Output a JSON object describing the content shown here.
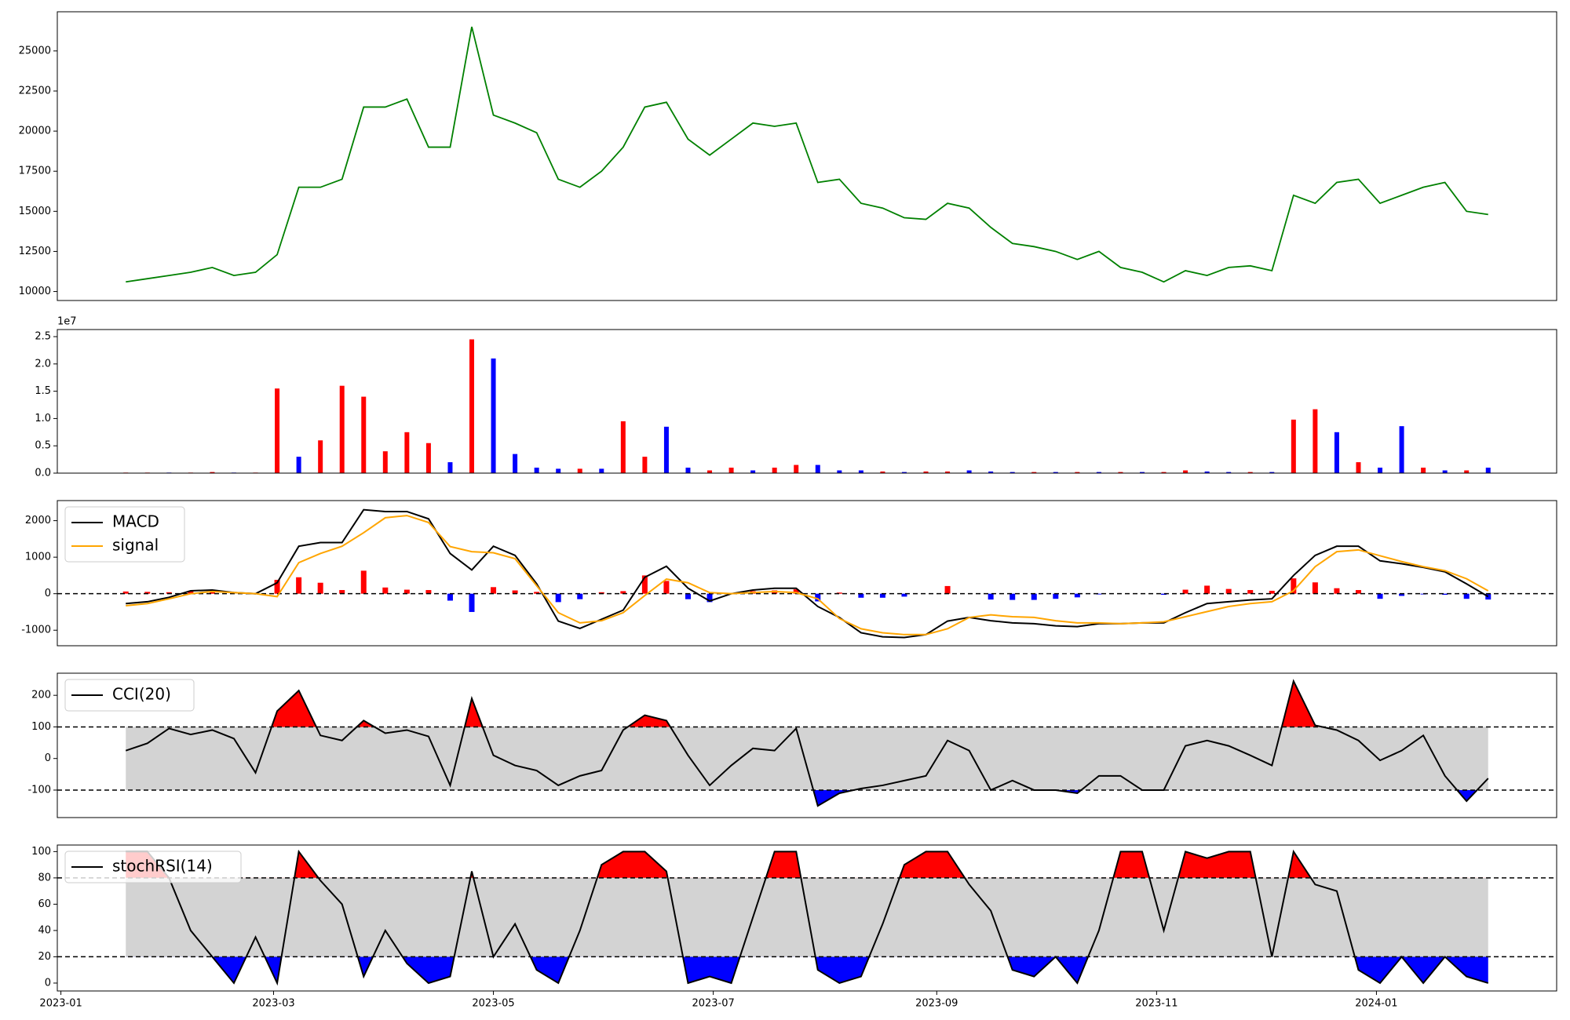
{
  "chart_data": [
    {
      "type": "line",
      "x": [
        18,
        24,
        30,
        36,
        42,
        48,
        54,
        60,
        66,
        72,
        78,
        84,
        90,
        96,
        102,
        108,
        114,
        120,
        126,
        132,
        138,
        144,
        150,
        156,
        162,
        168,
        174,
        180,
        186,
        192,
        198,
        204,
        210,
        216,
        222,
        228,
        234,
        240,
        246,
        252,
        258,
        264,
        270,
        276,
        282,
        288,
        294,
        300,
        306,
        312,
        318,
        324,
        330,
        336,
        342,
        348,
        354,
        360,
        366,
        372,
        378,
        384,
        390,
        396
      ],
      "values": [
        10600,
        10800,
        11000,
        11200,
        11500,
        11000,
        11200,
        12300,
        16500,
        16500,
        17000,
        21500,
        21500,
        22000,
        19000,
        19000,
        26500,
        21000,
        20500,
        19900,
        17000,
        16500,
        17500,
        19000,
        21500,
        21800,
        19500,
        18500,
        19500,
        20500,
        20300,
        20500,
        16800,
        17000,
        15500,
        15200,
        14600,
        14500,
        15500,
        15200,
        14000,
        13000,
        12800,
        12500,
        12000,
        12500,
        11500,
        11200,
        10600,
        11300,
        11000,
        11500,
        11600,
        11300,
        16000,
        15500,
        16800,
        17000,
        15500,
        16000,
        16500,
        16800,
        15000,
        14800
      ],
      "color": "green",
      "xlim": [
        -1,
        415
      ],
      "ylim": [
        9440,
        27440
      ],
      "yticks": [
        10000,
        12500,
        15000,
        17500,
        20000,
        22500,
        25000
      ]
    },
    {
      "type": "bar",
      "x": [
        18,
        24,
        30,
        36,
        42,
        48,
        54,
        60,
        66,
        72,
        78,
        84,
        90,
        96,
        102,
        108,
        114,
        120,
        126,
        132,
        138,
        144,
        150,
        156,
        162,
        168,
        174,
        180,
        186,
        192,
        198,
        204,
        210,
        216,
        222,
        228,
        234,
        240,
        246,
        252,
        258,
        264,
        270,
        276,
        282,
        288,
        294,
        300,
        306,
        312,
        318,
        324,
        330,
        336,
        342,
        348,
        354,
        360,
        366,
        372,
        378,
        384,
        390,
        396
      ],
      "values": [
        100000,
        100000,
        100000,
        100000,
        200000,
        100000,
        100000,
        15500000,
        3000000,
        6000000,
        16000000,
        14000000,
        4000000,
        7500000,
        5500000,
        2000000,
        24500000,
        21000000,
        3500000,
        1000000,
        800000,
        800000,
        800000,
        9500000,
        3000000,
        8500000,
        1000000,
        500000,
        1000000,
        500000,
        1000000,
        1500000,
        1500000,
        500000,
        500000,
        300000,
        200000,
        300000,
        300000,
        500000,
        300000,
        200000,
        200000,
        200000,
        200000,
        200000,
        200000,
        200000,
        200000,
        500000,
        300000,
        200000,
        200000,
        200000,
        9800000,
        11700000,
        7500000,
        2000000,
        1000000,
        8600000,
        1000000,
        500000,
        500000,
        1000000
      ],
      "colors": [
        "red",
        "red",
        "blue",
        "red",
        "red",
        "blue",
        "red",
        "red",
        "blue",
        "red",
        "red",
        "red",
        "red",
        "red",
        "red",
        "blue",
        "red",
        "blue",
        "blue",
        "blue",
        "blue",
        "red",
        "blue",
        "red",
        "red",
        "blue",
        "blue",
        "red",
        "red",
        "blue",
        "red",
        "red",
        "blue",
        "blue",
        "blue",
        "red",
        "blue",
        "red",
        "red",
        "blue",
        "blue",
        "blue",
        "red",
        "blue",
        "red",
        "blue",
        "red",
        "blue",
        "red",
        "red",
        "blue",
        "blue",
        "red",
        "blue",
        "red",
        "red",
        "blue",
        "red",
        "blue",
        "blue",
        "red",
        "blue",
        "red",
        "blue"
      ],
      "xlim": [
        -1,
        415
      ],
      "ylim": [
        0,
        26300000
      ],
      "offset_label": "1e7",
      "yticks": [
        {
          "value": 0,
          "label": "0.0"
        },
        {
          "value": 5000000,
          "label": "0.5"
        },
        {
          "value": 10000000,
          "label": "1.0"
        },
        {
          "value": 15000000,
          "label": "1.5"
        },
        {
          "value": 20000000,
          "label": "2.0"
        },
        {
          "value": 25000000,
          "label": "2.5"
        }
      ]
    },
    {
      "type": "macd",
      "x": [
        18,
        24,
        30,
        36,
        42,
        48,
        54,
        60,
        66,
        72,
        78,
        84,
        90,
        96,
        102,
        108,
        114,
        120,
        126,
        132,
        138,
        144,
        150,
        156,
        162,
        168,
        174,
        180,
        186,
        192,
        198,
        204,
        210,
        216,
        222,
        228,
        234,
        240,
        246,
        252,
        258,
        264,
        270,
        276,
        282,
        288,
        294,
        300,
        306,
        312,
        318,
        324,
        330,
        336,
        342,
        348,
        354,
        360,
        366,
        372,
        378,
        384,
        390,
        396
      ],
      "series": [
        {
          "name": "MACD",
          "color": "black",
          "values": [
            -270,
            -220,
            -100,
            80,
            100,
            30,
            0,
            300,
            1300,
            1400,
            1400,
            2300,
            2250,
            2250,
            2050,
            1100,
            650,
            1300,
            1050,
            270,
            -750,
            -950,
            -700,
            -450,
            450,
            750,
            150,
            -200,
            0,
            100,
            150,
            150,
            -350,
            -650,
            -1070,
            -1180,
            -1200,
            -1120,
            -750,
            -650,
            -740,
            -800,
            -820,
            -880,
            -900,
            -820,
            -820,
            -800,
            -800,
            -520,
            -270,
            -220,
            -170,
            -140,
            500,
            1050,
            1300,
            1300,
            900,
            820,
            720,
            600,
            270,
            -80
          ]
        },
        {
          "name": "signal",
          "color": "orange",
          "values": [
            -330,
            -270,
            -140,
            0,
            60,
            30,
            0,
            -80,
            850,
            1100,
            1300,
            1670,
            2080,
            2140,
            1950,
            1290,
            1150,
            1120,
            960,
            220,
            -520,
            -800,
            -740,
            -520,
            -50,
            400,
            300,
            30,
            0,
            30,
            60,
            30,
            -140,
            -680,
            -960,
            -1070,
            -1120,
            -1120,
            -960,
            -650,
            -580,
            -630,
            -650,
            -740,
            -800,
            -800,
            -820,
            -800,
            -770,
            -630,
            -490,
            -350,
            -270,
            -220,
            80,
            740,
            1150,
            1200,
            1040,
            880,
            740,
            630,
            410,
            80
          ]
        }
      ],
      "histogram": {
        "up_color": "red",
        "down_color": "blue",
        "values": [
          60,
          50,
          40,
          80,
          40,
          0,
          0,
          380,
          450,
          300,
          100,
          630,
          170,
          110,
          100,
          -190,
          -500,
          180,
          90,
          50,
          -230,
          -150,
          40,
          70,
          500,
          350,
          -150,
          -230,
          0,
          70,
          90,
          120,
          -210,
          30,
          -110,
          -110,
          -80,
          0,
          210,
          0,
          -160,
          -170,
          -170,
          -140,
          -100,
          -20,
          0,
          0,
          -30,
          110,
          220,
          130,
          100,
          80,
          420,
          310,
          150,
          100,
          -140,
          -60,
          -20,
          -30,
          -140,
          -160
        ]
      },
      "hlines": [
        0
      ],
      "legend": "upper left",
      "xlim": [
        -1,
        415
      ],
      "ylim": [
        -1425,
        2550
      ],
      "yticks": [
        -1000,
        0,
        1000,
        2000
      ]
    },
    {
      "type": "oscillator",
      "x": [
        18,
        24,
        30,
        36,
        42,
        48,
        54,
        60,
        66,
        72,
        78,
        84,
        90,
        96,
        102,
        108,
        114,
        120,
        126,
        132,
        138,
        144,
        150,
        156,
        162,
        168,
        174,
        180,
        186,
        192,
        198,
        204,
        210,
        216,
        222,
        228,
        234,
        240,
        246,
        252,
        258,
        264,
        270,
        276,
        282,
        288,
        294,
        300,
        306,
        312,
        318,
        324,
        330,
        336,
        342,
        348,
        354,
        360,
        366,
        372,
        378,
        384,
        390,
        396
      ],
      "series": [
        {
          "name": "CCI(20)",
          "color": "black",
          "values": [
            25,
            48,
            95,
            76,
            90,
            63,
            -45,
            150,
            215,
            73,
            57,
            120,
            80,
            90,
            70,
            -85,
            190,
            10,
            -22,
            -38,
            -85,
            -55,
            -38,
            90,
            137,
            120,
            10,
            -85,
            -22,
            32,
            25,
            95,
            -150,
            -110,
            -95,
            -85,
            -70,
            -55,
            57,
            25,
            -100,
            -70,
            -100,
            -100,
            -110,
            -55,
            -55,
            -100,
            -100,
            40,
            57,
            40,
            10,
            -22,
            245,
            105,
            90,
            57,
            -6,
            25,
            73,
            -55,
            -135,
            -63
          ]
        }
      ],
      "thresholds": [
        -100,
        100
      ],
      "band_color": "lightgray",
      "upper_color": "red",
      "lower_color": "blue",
      "legend": "upper left",
      "xlim": [
        -1,
        415
      ],
      "ylim": [
        -187,
        270
      ],
      "yticks": [
        -100,
        0,
        100,
        200
      ]
    },
    {
      "type": "oscillator",
      "x": [
        18,
        24,
        30,
        36,
        42,
        48,
        54,
        60,
        66,
        72,
        78,
        84,
        90,
        96,
        102,
        108,
        114,
        120,
        126,
        132,
        138,
        144,
        150,
        156,
        162,
        168,
        174,
        180,
        186,
        192,
        198,
        204,
        210,
        216,
        222,
        228,
        234,
        240,
        246,
        252,
        258,
        264,
        270,
        276,
        282,
        288,
        294,
        300,
        306,
        312,
        318,
        324,
        330,
        336,
        342,
        348,
        354,
        360,
        366,
        372,
        378,
        384,
        390,
        396
      ],
      "series": [
        {
          "name": "stochRSI(14)",
          "color": "black",
          "values": [
            100,
            100,
            80,
            40,
            20,
            0,
            35,
            0,
            100,
            78,
            60,
            5,
            40,
            15,
            0,
            5,
            85,
            20,
            45,
            10,
            0,
            40,
            90,
            100,
            100,
            85,
            0,
            5,
            0,
            50,
            100,
            100,
            10,
            0,
            5,
            45,
            90,
            100,
            100,
            75,
            55,
            10,
            5,
            20,
            0,
            40,
            100,
            100,
            40,
            100,
            95,
            100,
            100,
            20,
            100,
            75,
            70,
            10,
            0,
            20,
            0,
            20,
            5,
            0
          ]
        }
      ],
      "thresholds": [
        20,
        80
      ],
      "band_color": "lightgray",
      "upper_color": "red",
      "lower_color": "blue",
      "legend": "upper left",
      "xlim": [
        -1,
        415
      ],
      "ylim": [
        -6,
        105
      ],
      "yticks": [
        0,
        20,
        40,
        60,
        80,
        100
      ],
      "xticks": [
        {
          "value": 0,
          "label": "2023-01"
        },
        {
          "value": 59,
          "label": "2023-03"
        },
        {
          "value": 120,
          "label": "2023-05"
        },
        {
          "value": 181,
          "label": "2023-07"
        },
        {
          "value": 243,
          "label": "2023-09"
        },
        {
          "value": 304,
          "label": "2023-11"
        },
        {
          "value": 365,
          "label": "2024-01"
        }
      ]
    }
  ]
}
